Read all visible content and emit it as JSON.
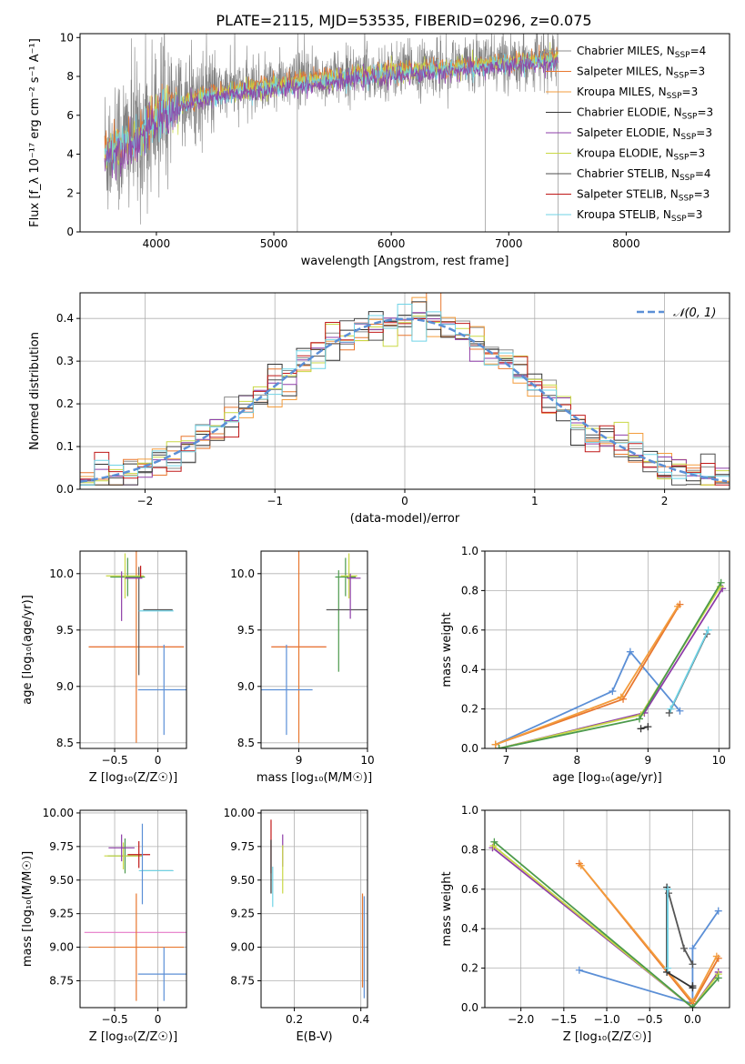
{
  "title": "PLATE=2115, MJD=53535, FIBERID=0296, z=0.075",
  "models": [
    {
      "name": "Chabrier MILES",
      "nssp": "4",
      "color": "#8b8b8b"
    },
    {
      "name": "Salpeter MILES",
      "nssp": "3",
      "color": "#e8772e"
    },
    {
      "name": "Kroupa MILES",
      "nssp": "3",
      "color": "#f39c3c"
    },
    {
      "name": "Chabrier ELODIE",
      "nssp": "3",
      "color": "#333333"
    },
    {
      "name": "Salpeter ELODIE",
      "nssp": "3",
      "color": "#8e3ea8"
    },
    {
      "name": "Kroupa ELODIE",
      "nssp": "3",
      "color": "#c9d844"
    },
    {
      "name": "Chabrier STELIB",
      "nssp": "4",
      "color": "#4d4d4d"
    },
    {
      "name": "Salpeter STELIB",
      "nssp": "3",
      "color": "#c01818"
    },
    {
      "name": "Kroupa STELIB",
      "nssp": "3",
      "color": "#6fd3e6"
    }
  ],
  "nssp_label": "N",
  "nssp_sub": "SSP",
  "chart_data": [
    {
      "id": "spectrum",
      "type": "line",
      "xlabel": "wavelength [Angstrom, rest frame]",
      "ylabel": "Flux [f_λ 10⁻¹⁷ erg cm⁻² s⁻¹ A⁻¹]",
      "xlim": [
        3350,
        8880
      ],
      "ylim": [
        0,
        10.2
      ],
      "xticks": [
        4000,
        5000,
        6000,
        7000,
        8000
      ],
      "yticks": [
        0,
        2,
        4,
        6,
        8,
        10
      ],
      "grid": false,
      "legend": "right",
      "data_range": [
        3560,
        7420
      ],
      "continuum_points": [
        [
          3560,
          4.2
        ],
        [
          3800,
          4.8
        ],
        [
          3950,
          5.6
        ],
        [
          4050,
          6.2
        ],
        [
          4300,
          6.9
        ],
        [
          4600,
          7.3
        ],
        [
          5000,
          7.6
        ],
        [
          5500,
          8.0
        ],
        [
          6000,
          8.3
        ],
        [
          6500,
          8.55
        ],
        [
          7000,
          8.8
        ],
        [
          7420,
          9.0
        ]
      ],
      "spikes": [
        5200,
        6800,
        7420
      ]
    },
    {
      "id": "residuals",
      "type": "step-histogram",
      "xlabel": "(data-model)/error",
      "ylabel": "Normed distribution",
      "xlim": [
        -2.5,
        2.5
      ],
      "ylim": [
        0,
        0.46
      ],
      "xticks": [
        -2,
        -1,
        0,
        1,
        2
      ],
      "yticks": [
        0.0,
        0.1,
        0.2,
        0.3,
        0.4
      ],
      "grid": true,
      "legend": "top-right",
      "legend_label": "𝒩(0, 1)",
      "bin_edges_range": [
        -2.5,
        2.5
      ],
      "bins": 45,
      "reference_curve": "gaussian mean 0 sigma 1",
      "reference_color": "#5b8fd6"
    },
    {
      "id": "age-vs-z",
      "type": "errorbar",
      "xlabel": "Z [log₁₀(Z/Z☉)]",
      "ylabel": "age  [log₁₀(age/yr)]",
      "xlim": [
        -0.9,
        0.33
      ],
      "ylim": [
        8.45,
        10.2
      ],
      "xticks": [
        -0.5,
        0.0
      ],
      "yticks": [
        8.5,
        9.0,
        9.5,
        10.0
      ],
      "grid": true,
      "points": [
        {
          "x": -0.25,
          "xerr": 0.55,
          "y": 9.35,
          "yerr": 0.0,
          "color": "#e67ac8"
        },
        {
          "x": -0.25,
          "xerr": 0.55,
          "y": 9.35,
          "yerr": 0.85,
          "color": "#e8772e"
        },
        {
          "x": -0.22,
          "xerr": 0.0,
          "y": 9.58,
          "yerr": 0.48,
          "color": "#555555"
        },
        {
          "x": 0.07,
          "xerr": 0.3,
          "y": 8.97,
          "yerr": 0.4,
          "color": "#5b8fd6"
        },
        {
          "x": 0.0,
          "xerr": 0.17,
          "y": 9.68,
          "yerr": 0.0,
          "color": "#555555"
        },
        {
          "x": -0.02,
          "xerr": 0.2,
          "y": 9.67,
          "yerr": 0.0,
          "color": "#6fd3e6"
        },
        {
          "x": -0.35,
          "xerr": 0.2,
          "y": 9.97,
          "yerr": 0.17,
          "color": "#4c9a4c"
        },
        {
          "x": -0.38,
          "xerr": 0.22,
          "y": 9.98,
          "yerr": 0.2,
          "color": "#c9d844"
        },
        {
          "x": -0.42,
          "xerr": 0.0,
          "y": 9.8,
          "yerr": 0.22,
          "color": "#8e3ea8"
        },
        {
          "x": -0.2,
          "xerr": 0.0,
          "y": 10.02,
          "yerr": 0.05,
          "color": "#c01818"
        },
        {
          "x": -0.28,
          "xerr": 0.1,
          "y": 9.96,
          "yerr": 0.0,
          "color": "#8e3ea8"
        }
      ]
    },
    {
      "id": "age-vs-mass",
      "type": "errorbar",
      "xlabel": "mass [log₁₀(M/M☉)]",
      "ylabel": "",
      "xlim": [
        8.45,
        10.0
      ],
      "ylim": [
        8.45,
        10.2
      ],
      "xticks": [
        9,
        10
      ],
      "yticks": [
        8.5,
        9.0,
        9.5,
        10.0
      ],
      "grid": true,
      "points": [
        {
          "x": 9.0,
          "xerr": 0.4,
          "y": 9.35,
          "yerr": 0.0,
          "color": "#e67ac8"
        },
        {
          "x": 9.0,
          "xerr": 0.4,
          "y": 9.35,
          "yerr": 0.85,
          "color": "#e8772e"
        },
        {
          "x": 8.82,
          "xerr": 0.38,
          "y": 8.97,
          "yerr": 0.4,
          "color": "#5b8fd6"
        },
        {
          "x": 9.58,
          "xerr": 0.0,
          "y": 9.58,
          "yerr": 0.45,
          "color": "#4c9a4c"
        },
        {
          "x": 9.7,
          "xerr": 0.3,
          "y": 9.68,
          "yerr": 0.0,
          "color": "#555555"
        },
        {
          "x": 9.68,
          "xerr": 0.15,
          "y": 9.97,
          "yerr": 0.17,
          "color": "#4c9a4c"
        },
        {
          "x": 9.73,
          "xerr": 0.12,
          "y": 9.98,
          "yerr": 0.2,
          "color": "#c9d844"
        },
        {
          "x": 9.75,
          "xerr": 0.0,
          "y": 9.8,
          "yerr": 0.2,
          "color": "#8e3ea8"
        },
        {
          "x": 9.8,
          "xerr": 0.1,
          "y": 9.96,
          "yerr": 0.0,
          "color": "#8e3ea8"
        }
      ]
    },
    {
      "id": "massweight-vs-age",
      "type": "line",
      "xlabel": "age  [log₁₀(age/yr)]",
      "ylabel": "mass weight",
      "xlim": [
        6.7,
        10.15
      ],
      "ylim": [
        0,
        1.0
      ],
      "xticks": [
        7,
        8,
        9,
        10
      ],
      "yticks": [
        0.0,
        0.2,
        0.4,
        0.6,
        0.8,
        1.0
      ],
      "grid": true,
      "series": [
        {
          "color": "#5b8fd6",
          "points": [
            [
              6.85,
              0.02
            ],
            [
              8.5,
              0.29
            ],
            [
              8.75,
              0.49
            ],
            [
              9.45,
              0.19
            ]
          ]
        },
        {
          "color": "#e8772e",
          "points": [
            [
              6.85,
              0.02
            ],
            [
              8.65,
              0.25
            ],
            [
              9.45,
              0.73
            ]
          ]
        },
        {
          "color": "#f39c3c",
          "points": [
            [
              6.85,
              0.02
            ],
            [
              8.62,
              0.26
            ],
            [
              9.42,
              0.72
            ]
          ]
        },
        {
          "color": "#8e3ea8",
          "points": [
            [
              6.9,
              0.0
            ],
            [
              8.95,
              0.18
            ],
            [
              10.05,
              0.81
            ]
          ]
        },
        {
          "color": "#c9d844",
          "points": [
            [
              6.9,
              0.0
            ],
            [
              8.9,
              0.17
            ],
            [
              10.02,
              0.82
            ]
          ]
        },
        {
          "color": "#4c9a4c",
          "points": [
            [
              6.9,
              0.0
            ],
            [
              8.88,
              0.15
            ],
            [
              10.03,
              0.84
            ]
          ]
        },
        {
          "color": "#333333",
          "points": [
            [
              8.9,
              0.1
            ],
            [
              9.0,
              0.11
            ]
          ]
        },
        {
          "color": "#555555",
          "points": [
            [
              9.3,
              0.18
            ],
            [
              9.83,
              0.58
            ]
          ]
        },
        {
          "color": "#6fd3e6",
          "points": [
            [
              9.32,
              0.2
            ],
            [
              9.85,
              0.6
            ]
          ]
        }
      ]
    },
    {
      "id": "mass-vs-z",
      "type": "errorbar",
      "xlabel": "Z [log₁₀(Z/Z☉)]",
      "ylabel": "mass [log₁₀(M/M☉)]",
      "xlim": [
        -0.9,
        0.33
      ],
      "ylim": [
        8.55,
        10.02
      ],
      "xticks": [
        -0.5,
        0.0
      ],
      "yticks": [
        8.75,
        9.0,
        9.25,
        9.5,
        9.75,
        10.0
      ],
      "grid": true,
      "points": [
        {
          "x": -0.25,
          "xerr": 0.6,
          "y": 9.11,
          "yerr": 0.0,
          "color": "#e67ac8"
        },
        {
          "x": -0.25,
          "xerr": 0.55,
          "y": 9.0,
          "yerr": 0.4,
          "color": "#e8772e"
        },
        {
          "x": 0.07,
          "xerr": 0.3,
          "y": 8.8,
          "yerr": 0.2,
          "color": "#5b8fd6"
        },
        {
          "x": 0.0,
          "xerr": 0.17,
          "y": 9.57,
          "yerr": 0.0,
          "color": "#555555"
        },
        {
          "x": -0.02,
          "xerr": 0.2,
          "y": 9.57,
          "yerr": 0.0,
          "color": "#6fd3e6"
        },
        {
          "x": -0.38,
          "xerr": 0.2,
          "y": 9.68,
          "yerr": 0.13,
          "color": "#4c9a4c"
        },
        {
          "x": -0.4,
          "xerr": 0.22,
          "y": 9.68,
          "yerr": 0.1,
          "color": "#c9d844"
        },
        {
          "x": -0.42,
          "xerr": 0.15,
          "y": 9.74,
          "yerr": 0.1,
          "color": "#8e3ea8"
        },
        {
          "x": -0.22,
          "xerr": 0.13,
          "y": 9.69,
          "yerr": 0.1,
          "color": "#c01818"
        },
        {
          "x": -0.18,
          "xerr": 0.0,
          "y": 9.62,
          "yerr": 0.3,
          "color": "#5b8fd6"
        }
      ]
    },
    {
      "id": "mass-vs-ebv",
      "type": "errorbar",
      "xlabel": "E(B-V)",
      "ylabel": "",
      "xlim": [
        0.1,
        0.42
      ],
      "ylim": [
        8.55,
        10.02
      ],
      "xticks": [
        0.2,
        0.4
      ],
      "yticks": [
        8.75,
        9.0,
        9.25,
        9.5,
        9.75,
        10.0
      ],
      "grid": true,
      "points": [
        {
          "x": 0.13,
          "xerr": 0.0,
          "y": 9.75,
          "yerr": 0.2,
          "color": "#c01818"
        },
        {
          "x": 0.13,
          "xerr": 0.0,
          "y": 9.6,
          "yerr": 0.2,
          "color": "#333333"
        },
        {
          "x": 0.135,
          "xerr": 0.0,
          "y": 9.45,
          "yerr": 0.15,
          "color": "#6fd3e6"
        },
        {
          "x": 0.165,
          "xerr": 0.0,
          "y": 9.72,
          "yerr": 0.12,
          "color": "#8e3ea8"
        },
        {
          "x": 0.165,
          "xerr": 0.0,
          "y": 9.58,
          "yerr": 0.18,
          "color": "#c9d844"
        },
        {
          "x": 0.405,
          "xerr": 0.0,
          "y": 9.05,
          "yerr": 0.35,
          "color": "#e8772e"
        },
        {
          "x": 0.41,
          "xerr": 0.0,
          "y": 9.0,
          "yerr": 0.38,
          "color": "#5b8fd6"
        }
      ]
    },
    {
      "id": "massweight-vs-z",
      "type": "line",
      "xlabel": "Z [log₁₀(Z/Z☉)]",
      "ylabel": "mass weight",
      "xlim": [
        -2.42,
        0.43
      ],
      "ylim": [
        0,
        1.0
      ],
      "xticks": [
        -2.0,
        -1.5,
        -1.0,
        -0.5,
        0.0
      ],
      "yticks": [
        0.0,
        0.2,
        0.4,
        0.6,
        0.8,
        1.0
      ],
      "grid": true,
      "series": [
        {
          "color": "#5b8fd6",
          "points": [
            [
              -1.32,
              0.19
            ],
            [
              0.0,
              0.02
            ],
            [
              0.0,
              0.3
            ],
            [
              0.3,
              0.49
            ]
          ]
        },
        {
          "color": "#e8772e",
          "points": [
            [
              -1.32,
              0.73
            ],
            [
              0.0,
              0.02
            ],
            [
              0.3,
              0.25
            ]
          ]
        },
        {
          "color": "#f39c3c",
          "points": [
            [
              -1.3,
              0.72
            ],
            [
              0.0,
              0.03
            ],
            [
              0.28,
              0.26
            ]
          ]
        },
        {
          "color": "#8e3ea8",
          "points": [
            [
              -2.33,
              0.81
            ],
            [
              0.0,
              0.0
            ],
            [
              0.3,
              0.18
            ]
          ]
        },
        {
          "color": "#c9d844",
          "points": [
            [
              -2.32,
              0.82
            ],
            [
              0.0,
              0.0
            ],
            [
              0.3,
              0.17
            ]
          ]
        },
        {
          "color": "#4c9a4c",
          "points": [
            [
              -2.31,
              0.84
            ],
            [
              0.0,
              0.0
            ],
            [
              0.3,
              0.15
            ]
          ]
        },
        {
          "color": "#333333",
          "points": [
            [
              -0.3,
              0.61
            ],
            [
              -0.3,
              0.18
            ],
            [
              0.0,
              0.1
            ],
            [
              0.0,
              0.11
            ]
          ]
        },
        {
          "color": "#555555",
          "points": [
            [
              -0.28,
              0.58
            ],
            [
              -0.1,
              0.3
            ],
            [
              0.0,
              0.22
            ]
          ]
        },
        {
          "color": "#6fd3e6",
          "points": [
            [
              -0.29,
              0.6
            ],
            [
              -0.29,
              0.2
            ]
          ]
        }
      ]
    }
  ]
}
